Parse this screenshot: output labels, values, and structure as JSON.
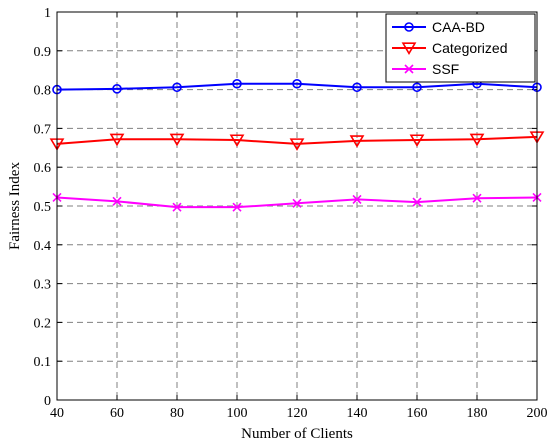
{
  "chart_data": {
    "type": "line",
    "title": "",
    "xlabel": "Number of Clients",
    "ylabel": "Fairness Index",
    "x": [
      40,
      60,
      80,
      100,
      120,
      140,
      160,
      180,
      200
    ],
    "xticks": [
      40,
      60,
      80,
      100,
      120,
      140,
      160,
      180,
      200
    ],
    "yticks": [
      0,
      0.1,
      0.2,
      0.3,
      0.4,
      0.5,
      0.6,
      0.7,
      0.8,
      0.9,
      1
    ],
    "ytick_labels": [
      "0",
      "0.1",
      "0.2",
      "0.3",
      "0.4",
      "0.5",
      "0.6",
      "0.7",
      "0.8",
      "0.9",
      "1"
    ],
    "xlim": [
      40,
      200
    ],
    "ylim": [
      0,
      1
    ],
    "grid": true,
    "legend_position": "top-right",
    "series": [
      {
        "name": "CAA-BD",
        "color": "#0000ff",
        "marker": "circle",
        "values": [
          0.8,
          0.802,
          0.806,
          0.815,
          0.815,
          0.806,
          0.806,
          0.815,
          0.806
        ]
      },
      {
        "name": "Categorized",
        "color": "#ff0000",
        "marker": "triangle-down",
        "values": [
          0.66,
          0.672,
          0.672,
          0.67,
          0.66,
          0.668,
          0.67,
          0.672,
          0.678
        ]
      },
      {
        "name": "SSF",
        "color": "#ff00ff",
        "marker": "x",
        "values": [
          0.522,
          0.512,
          0.497,
          0.497,
          0.507,
          0.517,
          0.51,
          0.52,
          0.522
        ]
      }
    ]
  }
}
